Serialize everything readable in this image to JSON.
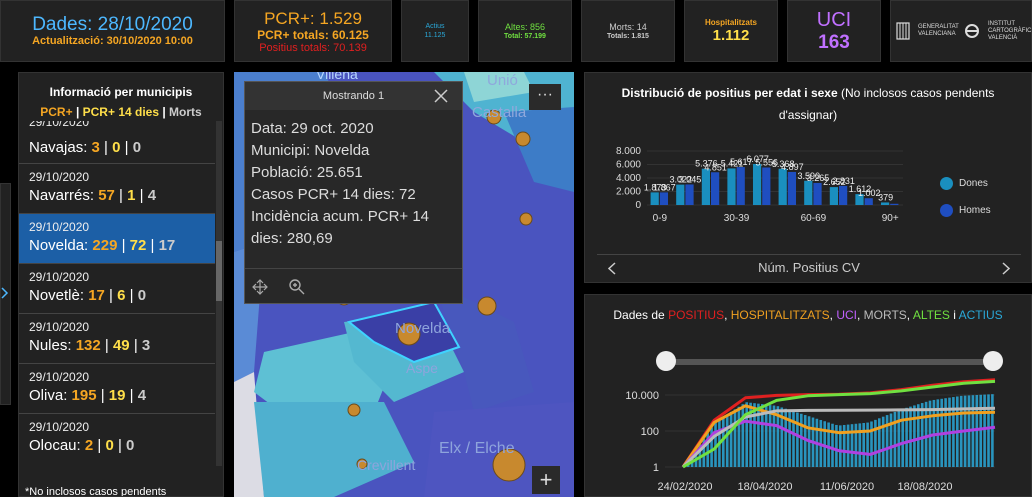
{
  "header": {
    "dates": {
      "line1": "Dades: 28/10/2020",
      "line2": "Actualització: 30/10/2020 10:00"
    },
    "pcr": {
      "main": "PCR+: 1.529",
      "total": "PCR+ totals: 60.125",
      "positius": "Positius totals: 70.139"
    },
    "actius": {
      "label": "Actius",
      "value": "11.125"
    },
    "altes": {
      "label": "Altes: 856",
      "total": "Total: 57.199"
    },
    "morts": {
      "label": "Morts: 14",
      "total": "Totals: 1.815"
    },
    "hosp": {
      "label": "Hospitalitzats",
      "value": "1.112"
    },
    "uci": {
      "label": "UCI",
      "value": "163"
    },
    "logo1": "GENERALITAT VALENCIANA",
    "logo2": "INSTITUT CARTOGRÀFIC VALENCIÀ"
  },
  "municipis": {
    "title": "Informació per municipis",
    "legend": {
      "pcr": "PCR+",
      "sep1": " | ",
      "pcr14": "PCR+ 14 dies",
      "sep2": " | ",
      "morts": "Morts"
    },
    "partial_date": "29/10/2020",
    "rows": [
      {
        "date": "",
        "name": "Navajas",
        "pcr": "3",
        "pcr14": "0",
        "morts": "0",
        "partial": true
      },
      {
        "date": "29/10/2020",
        "name": "Navarrés",
        "pcr": "57",
        "pcr14": "1",
        "morts": "4"
      },
      {
        "date": "29/10/2020",
        "name": "Novelda",
        "pcr": "229",
        "pcr14": "72",
        "morts": "17",
        "selected": true
      },
      {
        "date": "29/10/2020",
        "name": "Novetlè",
        "pcr": "17",
        "pcr14": "6",
        "morts": "0"
      },
      {
        "date": "29/10/2020",
        "name": "Nules",
        "pcr": "132",
        "pcr14": "49",
        "morts": "3"
      },
      {
        "date": "29/10/2020",
        "name": "Oliva",
        "pcr": "195",
        "pcr14": "19",
        "morts": "4"
      },
      {
        "date": "29/10/2020",
        "name": "Olocau",
        "pcr": "2",
        "pcr14": "0",
        "morts": "0"
      }
    ],
    "footnote": "*No inclosos casos pendents"
  },
  "map": {
    "labels": {
      "unio": "Unió",
      "castalla": "Castalla",
      "novelda": "Novelda",
      "aspe": "Aspe",
      "elx": "Elx / Elche",
      "crevillent": "Crevillent",
      "top": "Villena"
    },
    "more_label": "···",
    "zoom_in_label": "+"
  },
  "popup": {
    "title": "Mostrando 1",
    "lines": [
      "Data: 29 oct. 2020",
      "Municipi: Novelda",
      "Població: 25.651",
      "Casos PCR+ 14 dies: 72",
      "Incidència acum. PCR+ 14",
      "dies: 280,69"
    ]
  },
  "age_chart": {
    "title_bold": "Distribució de positius per edat i sexe",
    "title_rest": " (No inclosos casos pendents",
    "title_line2": "d'assignar)",
    "footer": "Núm. Positius CV",
    "colors": {
      "dones": "#1a8fbf",
      "homes": "#1f4ec0"
    }
  },
  "time_chart": {
    "title": {
      "prefix": "Dades de ",
      "positius": "POSITIUS",
      "c1": ", ",
      "hosp": "HOSPITALITZATS",
      "c2": ", ",
      "uci": "UCI",
      "c3": ", ",
      "morts": "MORTS",
      "c4": ", ",
      "altes": "ALTES",
      "c5": " i ",
      "actius": "ACTIUS"
    },
    "colors": {
      "positius": "#e02020",
      "hosp": "#f0a020",
      "uci": "#b040e0",
      "morts": "#bbbbbb",
      "altes": "#70e040",
      "actius": "#2aa8d8"
    }
  },
  "chart_data": [
    {
      "type": "bar",
      "categories": [
        "0-9",
        "10-19",
        "20-29",
        "30-39",
        "40-49",
        "50-59",
        "60-69",
        "70-79",
        "80-89",
        "90+"
      ],
      "tick_labels": [
        "0-9",
        "30-39",
        "60-69",
        "90+"
      ],
      "series": [
        {
          "name": "Dones",
          "values": [
            1873,
            3022,
            5376,
            5421,
            6077,
            5368,
            3590,
            2652,
            1612,
            379
          ]
        },
        {
          "name": "Homes",
          "values": [
            1867,
            3045,
            4851,
            5617,
            5556,
            4897,
            3265,
            2831,
            1002,
            179
          ]
        }
      ],
      "ylim": [
        0,
        8000
      ],
      "yticks": [
        "8.000",
        "6.000",
        "4.000",
        "2.000",
        "0"
      ],
      "data_labels": [
        "1.873",
        "1.867",
        "3.022",
        "3.045",
        "5.376",
        "4.851",
        "5.421",
        "5.617",
        "6.077",
        "5.556",
        "5.368",
        "4.897",
        "3.590",
        "3.265",
        "2.652",
        "2.831",
        "1.612",
        "1.002",
        "379"
      ],
      "legend_position": "right"
    },
    {
      "type": "line",
      "x_ticks": [
        "24/02/2020",
        "18/04/2020",
        "11/06/2020",
        "18/08/2020"
      ],
      "y_scale": "log",
      "y_ticks": [
        "10.000",
        "100",
        "1"
      ],
      "ylim": [
        1,
        100000
      ],
      "series": [
        {
          "name": "POSITIUS",
          "values": [
            1,
            400,
            7000,
            9500,
            10500,
            11000,
            13000,
            20000,
            35000,
            55000,
            70000
          ]
        },
        {
          "name": "HOSPITALITZATS",
          "values": [
            1,
            300,
            2500,
            800,
            150,
            80,
            100,
            400,
            700,
            1000,
            1112
          ]
        },
        {
          "name": "UCI",
          "values": [
            1,
            80,
            350,
            200,
            30,
            8,
            5,
            20,
            60,
            100,
            163
          ]
        },
        {
          "name": "MORTS",
          "values": [
            1,
            50,
            600,
            1300,
            1400,
            1430,
            1440,
            1480,
            1550,
            1700,
            1815
          ]
        },
        {
          "name": "ALTES",
          "values": [
            1,
            10,
            800,
            5000,
            9000,
            10500,
            12000,
            17000,
            28000,
            45000,
            57199
          ]
        },
        {
          "name": "ACTIUS",
          "values": [
            1,
            300,
            4000,
            2500,
            700,
            200,
            300,
            1500,
            5000,
            9000,
            11125
          ]
        }
      ]
    }
  ]
}
